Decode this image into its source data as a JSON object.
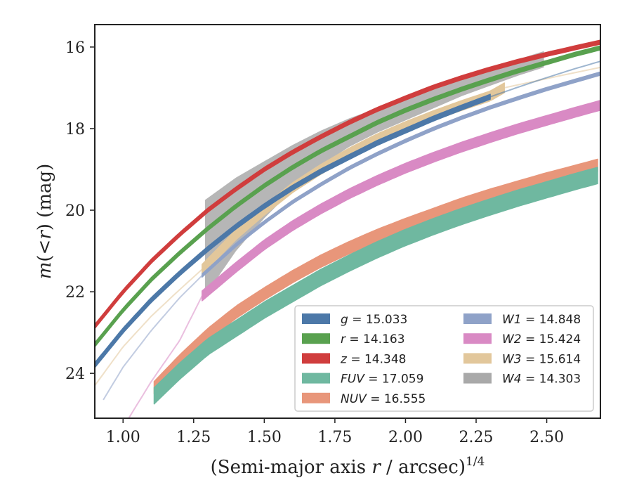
{
  "chart_data": {
    "type": "line",
    "title": "",
    "xlabel_main": "(Semi-major axis ",
    "xlabel_r": "r",
    "xlabel_tail": " / arcsec)",
    "xlabel_sup": "1/4",
    "ylabel_m": "m",
    "ylabel_paren": "(<",
    "ylabel_r": "r",
    "ylabel_tail": ") (mag)",
    "xlim": [
      0.9,
      2.69
    ],
    "ylim": [
      25.1,
      15.45
    ],
    "x_ticks": [
      1.0,
      1.25,
      1.5,
      1.75,
      2.0,
      2.25,
      2.5
    ],
    "x_tick_labels": [
      "1.00",
      "1.25",
      "1.50",
      "1.75",
      "2.00",
      "2.25",
      "2.50"
    ],
    "y_ticks": [
      16,
      18,
      20,
      22,
      24
    ],
    "y_tick_labels": [
      "16",
      "18",
      "20",
      "22",
      "24"
    ],
    "grid": false,
    "legend_position": "lower-right",
    "series": [
      {
        "name": "g",
        "value": "15.033",
        "color": "#4c78a8",
        "band_start": 0.9,
        "band_end": 2.3,
        "half_width": 0.06,
        "halo_start": 2.3,
        "halo_end": 2.69,
        "x": [
          0.9,
          1.0,
          1.1,
          1.2,
          1.3,
          1.4,
          1.5,
          1.6,
          1.7,
          1.8,
          1.9,
          2.0,
          2.1,
          2.2,
          2.3,
          2.4,
          2.5,
          2.6,
          2.69
        ],
        "y": [
          23.8,
          22.95,
          22.2,
          21.55,
          20.95,
          20.4,
          19.9,
          19.45,
          19.05,
          18.7,
          18.35,
          18.05,
          17.75,
          17.48,
          17.22,
          16.98,
          16.75,
          16.53,
          16.35
        ]
      },
      {
        "name": "r",
        "value": "14.163",
        "color": "#59a14f",
        "band_start": 0.9,
        "band_end": 2.69,
        "half_width": 0.05,
        "halo_start": 2.69,
        "halo_end": 2.69,
        "x": [
          0.9,
          1.0,
          1.1,
          1.2,
          1.3,
          1.4,
          1.5,
          1.6,
          1.7,
          1.8,
          1.9,
          2.0,
          2.1,
          2.2,
          2.3,
          2.4,
          2.5,
          2.6,
          2.69
        ],
        "y": [
          23.3,
          22.45,
          21.7,
          21.05,
          20.45,
          19.9,
          19.4,
          18.95,
          18.55,
          18.2,
          17.85,
          17.55,
          17.28,
          17.03,
          16.8,
          16.58,
          16.38,
          16.18,
          16.02
        ]
      },
      {
        "name": "z",
        "value": "14.348",
        "color": "#d03d3d",
        "band_start": 0.9,
        "band_end": 2.69,
        "half_width": 0.05,
        "halo_start": 2.69,
        "halo_end": 2.69,
        "x": [
          0.9,
          1.0,
          1.1,
          1.2,
          1.3,
          1.4,
          1.5,
          1.6,
          1.7,
          1.8,
          1.9,
          2.0,
          2.1,
          2.2,
          2.3,
          2.4,
          2.5,
          2.6,
          2.69
        ],
        "y": [
          22.85,
          22.0,
          21.25,
          20.6,
          20.0,
          19.48,
          19.0,
          18.58,
          18.2,
          17.85,
          17.53,
          17.25,
          16.98,
          16.75,
          16.54,
          16.35,
          16.18,
          16.02,
          15.88
        ]
      },
      {
        "name": "FUV",
        "value": "17.059",
        "color": "#6fb8a0",
        "band_start": 1.11,
        "band_end": 2.68,
        "half_width": 0.2,
        "halo_start": 2.68,
        "halo_end": 2.68,
        "x": [
          1.11,
          1.2,
          1.3,
          1.4,
          1.5,
          1.6,
          1.7,
          1.8,
          1.9,
          2.0,
          2.1,
          2.2,
          2.3,
          2.4,
          2.5,
          2.6,
          2.68
        ],
        "y": [
          24.55,
          23.95,
          23.35,
          22.9,
          22.45,
          22.05,
          21.65,
          21.3,
          20.97,
          20.67,
          20.4,
          20.15,
          19.92,
          19.7,
          19.5,
          19.3,
          19.15
        ]
      },
      {
        "name": "NUV",
        "value": "16.555",
        "color": "#e8967a",
        "band_start": 1.11,
        "band_end": 2.68,
        "half_width": 0.15,
        "halo_start": 2.68,
        "halo_end": 2.68,
        "x": [
          1.11,
          1.2,
          1.3,
          1.4,
          1.5,
          1.6,
          1.7,
          1.8,
          1.9,
          2.0,
          2.1,
          2.2,
          2.3,
          2.4,
          2.5,
          2.6,
          2.68
        ],
        "y": [
          24.35,
          23.7,
          23.05,
          22.5,
          22.05,
          21.63,
          21.25,
          20.92,
          20.62,
          20.35,
          20.1,
          19.85,
          19.63,
          19.43,
          19.23,
          19.05,
          18.9
        ]
      },
      {
        "name": "W1",
        "value": "14.848",
        "color": "#8fa2c8",
        "band_start": 1.28,
        "band_end": 2.69,
        "half_width": 0.04,
        "halo_start": 0.93,
        "halo_end": 1.28,
        "x": [
          0.93,
          1.0,
          1.1,
          1.2,
          1.28,
          1.4,
          1.5,
          1.6,
          1.7,
          1.8,
          1.9,
          2.0,
          2.1,
          2.2,
          2.3,
          2.4,
          2.5,
          2.6,
          2.69
        ],
        "y": [
          24.65,
          23.85,
          22.95,
          22.15,
          21.6,
          20.85,
          20.3,
          19.8,
          19.37,
          18.97,
          18.62,
          18.3,
          18.0,
          17.73,
          17.48,
          17.25,
          17.03,
          16.83,
          16.65
        ]
      },
      {
        "name": "W2",
        "value": "15.424",
        "color": "#d98ac4",
        "band_start": 1.28,
        "band_end": 2.69,
        "half_width": 0.12,
        "halo_start": 1.02,
        "halo_end": 1.28,
        "x": [
          1.02,
          1.1,
          1.2,
          1.28,
          1.4,
          1.5,
          1.6,
          1.7,
          1.8,
          1.9,
          2.0,
          2.1,
          2.2,
          2.3,
          2.4,
          2.5,
          2.6,
          2.69
        ],
        "y": [
          25.1,
          24.2,
          23.2,
          22.1,
          21.4,
          20.85,
          20.38,
          19.97,
          19.6,
          19.27,
          18.97,
          18.7,
          18.45,
          18.22,
          18.0,
          17.8,
          17.6,
          17.43
        ]
      },
      {
        "name": "W3",
        "value": "15.614",
        "color": "#e2c79b",
        "band_start": 1.28,
        "band_end": 2.35,
        "half_width": 0.12,
        "halo_start": 0.9,
        "halo_end": 1.28,
        "halo_x": [
          2.35,
          2.45,
          2.55,
          2.69
        ],
        "halo_y": [
          17.0,
          16.85,
          16.7,
          16.5
        ],
        "x": [
          0.9,
          1.0,
          1.1,
          1.2,
          1.28,
          1.4,
          1.5,
          1.6,
          1.7,
          1.8,
          1.9,
          2.0,
          2.1,
          2.2,
          2.3,
          2.35
        ],
        "y": [
          24.3,
          23.35,
          22.6,
          21.95,
          21.45,
          20.6,
          20.0,
          19.45,
          19.0,
          18.6,
          18.25,
          17.95,
          17.68,
          17.43,
          17.2,
          17.0
        ]
      },
      {
        "name": "W4",
        "value": "14.303",
        "color": "#a9a9a9",
        "band_x": [
          1.29,
          1.4,
          1.5,
          1.6,
          1.7,
          1.8,
          1.9,
          2.0,
          2.1,
          2.2,
          2.3,
          2.4,
          2.49
        ],
        "band_upper": [
          19.75,
          19.2,
          18.8,
          18.4,
          18.05,
          17.75,
          17.5,
          17.25,
          17.0,
          16.8,
          16.55,
          16.3,
          16.1
        ],
        "band_lower": [
          22.1,
          21.0,
          20.2,
          19.5,
          18.9,
          18.45,
          18.1,
          17.8,
          17.5,
          17.2,
          16.95,
          16.7,
          16.5
        ]
      }
    ]
  }
}
